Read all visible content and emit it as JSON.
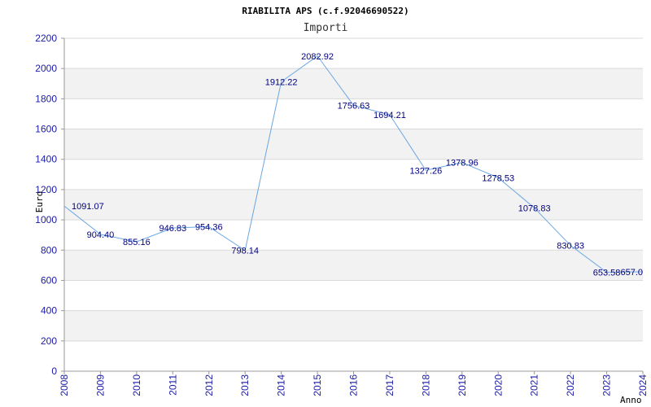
{
  "chart_data": {
    "type": "line",
    "title": "RIABILITA APS (c.f.92046690522)",
    "subtitle": "Importi",
    "xlabel": "Anno",
    "ylabel": "Euro",
    "ylim": [
      0,
      2200
    ],
    "yticks": [
      0,
      200,
      400,
      600,
      800,
      1000,
      1200,
      1400,
      1600,
      1800,
      2000,
      2200
    ],
    "grid": true,
    "x": [
      "2008",
      "2009",
      "2010",
      "2011",
      "2012",
      "2013",
      "2014",
      "2015",
      "2016",
      "2017",
      "2018",
      "2019",
      "2020",
      "2021",
      "2022",
      "2023",
      "2024"
    ],
    "series": [
      {
        "values": [
          1091.07,
          904.4,
          855.16,
          946.83,
          954.36,
          798.14,
          1912.22,
          2082.92,
          1756.63,
          1694.21,
          1327.26,
          1378.96,
          1278.53,
          1078.83,
          830.83,
          653.58,
          657.0
        ],
        "labels": [
          "1091.07",
          "904.40",
          "855.16",
          "946.83",
          "954.36",
          "798.14",
          "1912.22",
          "2082.92",
          "1756.63",
          "1694.21",
          "1327.26",
          "1378.96",
          "1278.53",
          "1078.83",
          "830.83",
          "653.58",
          "657.0"
        ]
      }
    ],
    "colors": {
      "line": "#6aa6e0",
      "band": "#f2f2f2",
      "grid": "#d9d9d9",
      "tick_text": "#1a1aa6",
      "label_text": "#000080"
    }
  }
}
